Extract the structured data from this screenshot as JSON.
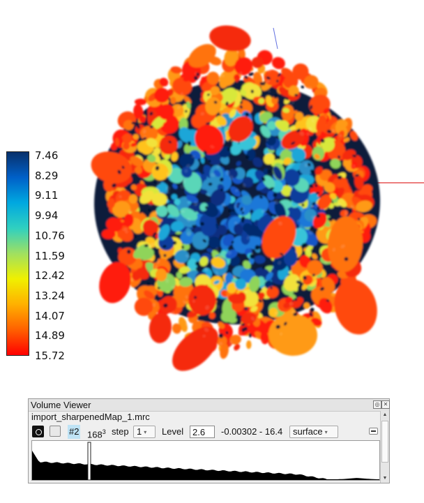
{
  "colorbar": {
    "labels": [
      "7.46",
      "8.29",
      "9.11",
      "9.94",
      "10.76",
      "11.59",
      "12.42",
      "13.24",
      "14.07",
      "14.89",
      "15.72"
    ],
    "colors": [
      "#08306b",
      "#0060c8",
      "#00a8e0",
      "#30d0c0",
      "#a0e060",
      "#f0f000",
      "#ffb000",
      "#ff6000",
      "#ff0000"
    ]
  },
  "volume_viewer": {
    "title": "Volume Viewer",
    "file_name": "import_sharpenedMap_1.mrc",
    "model_id": "#2",
    "grid_size": "168",
    "grid_exp": "3",
    "step_label": "step",
    "step_value": "1",
    "level_label": "Level",
    "level_value": "2.6",
    "range": "-0.00302 - 16.4",
    "style_value": "surface"
  }
}
